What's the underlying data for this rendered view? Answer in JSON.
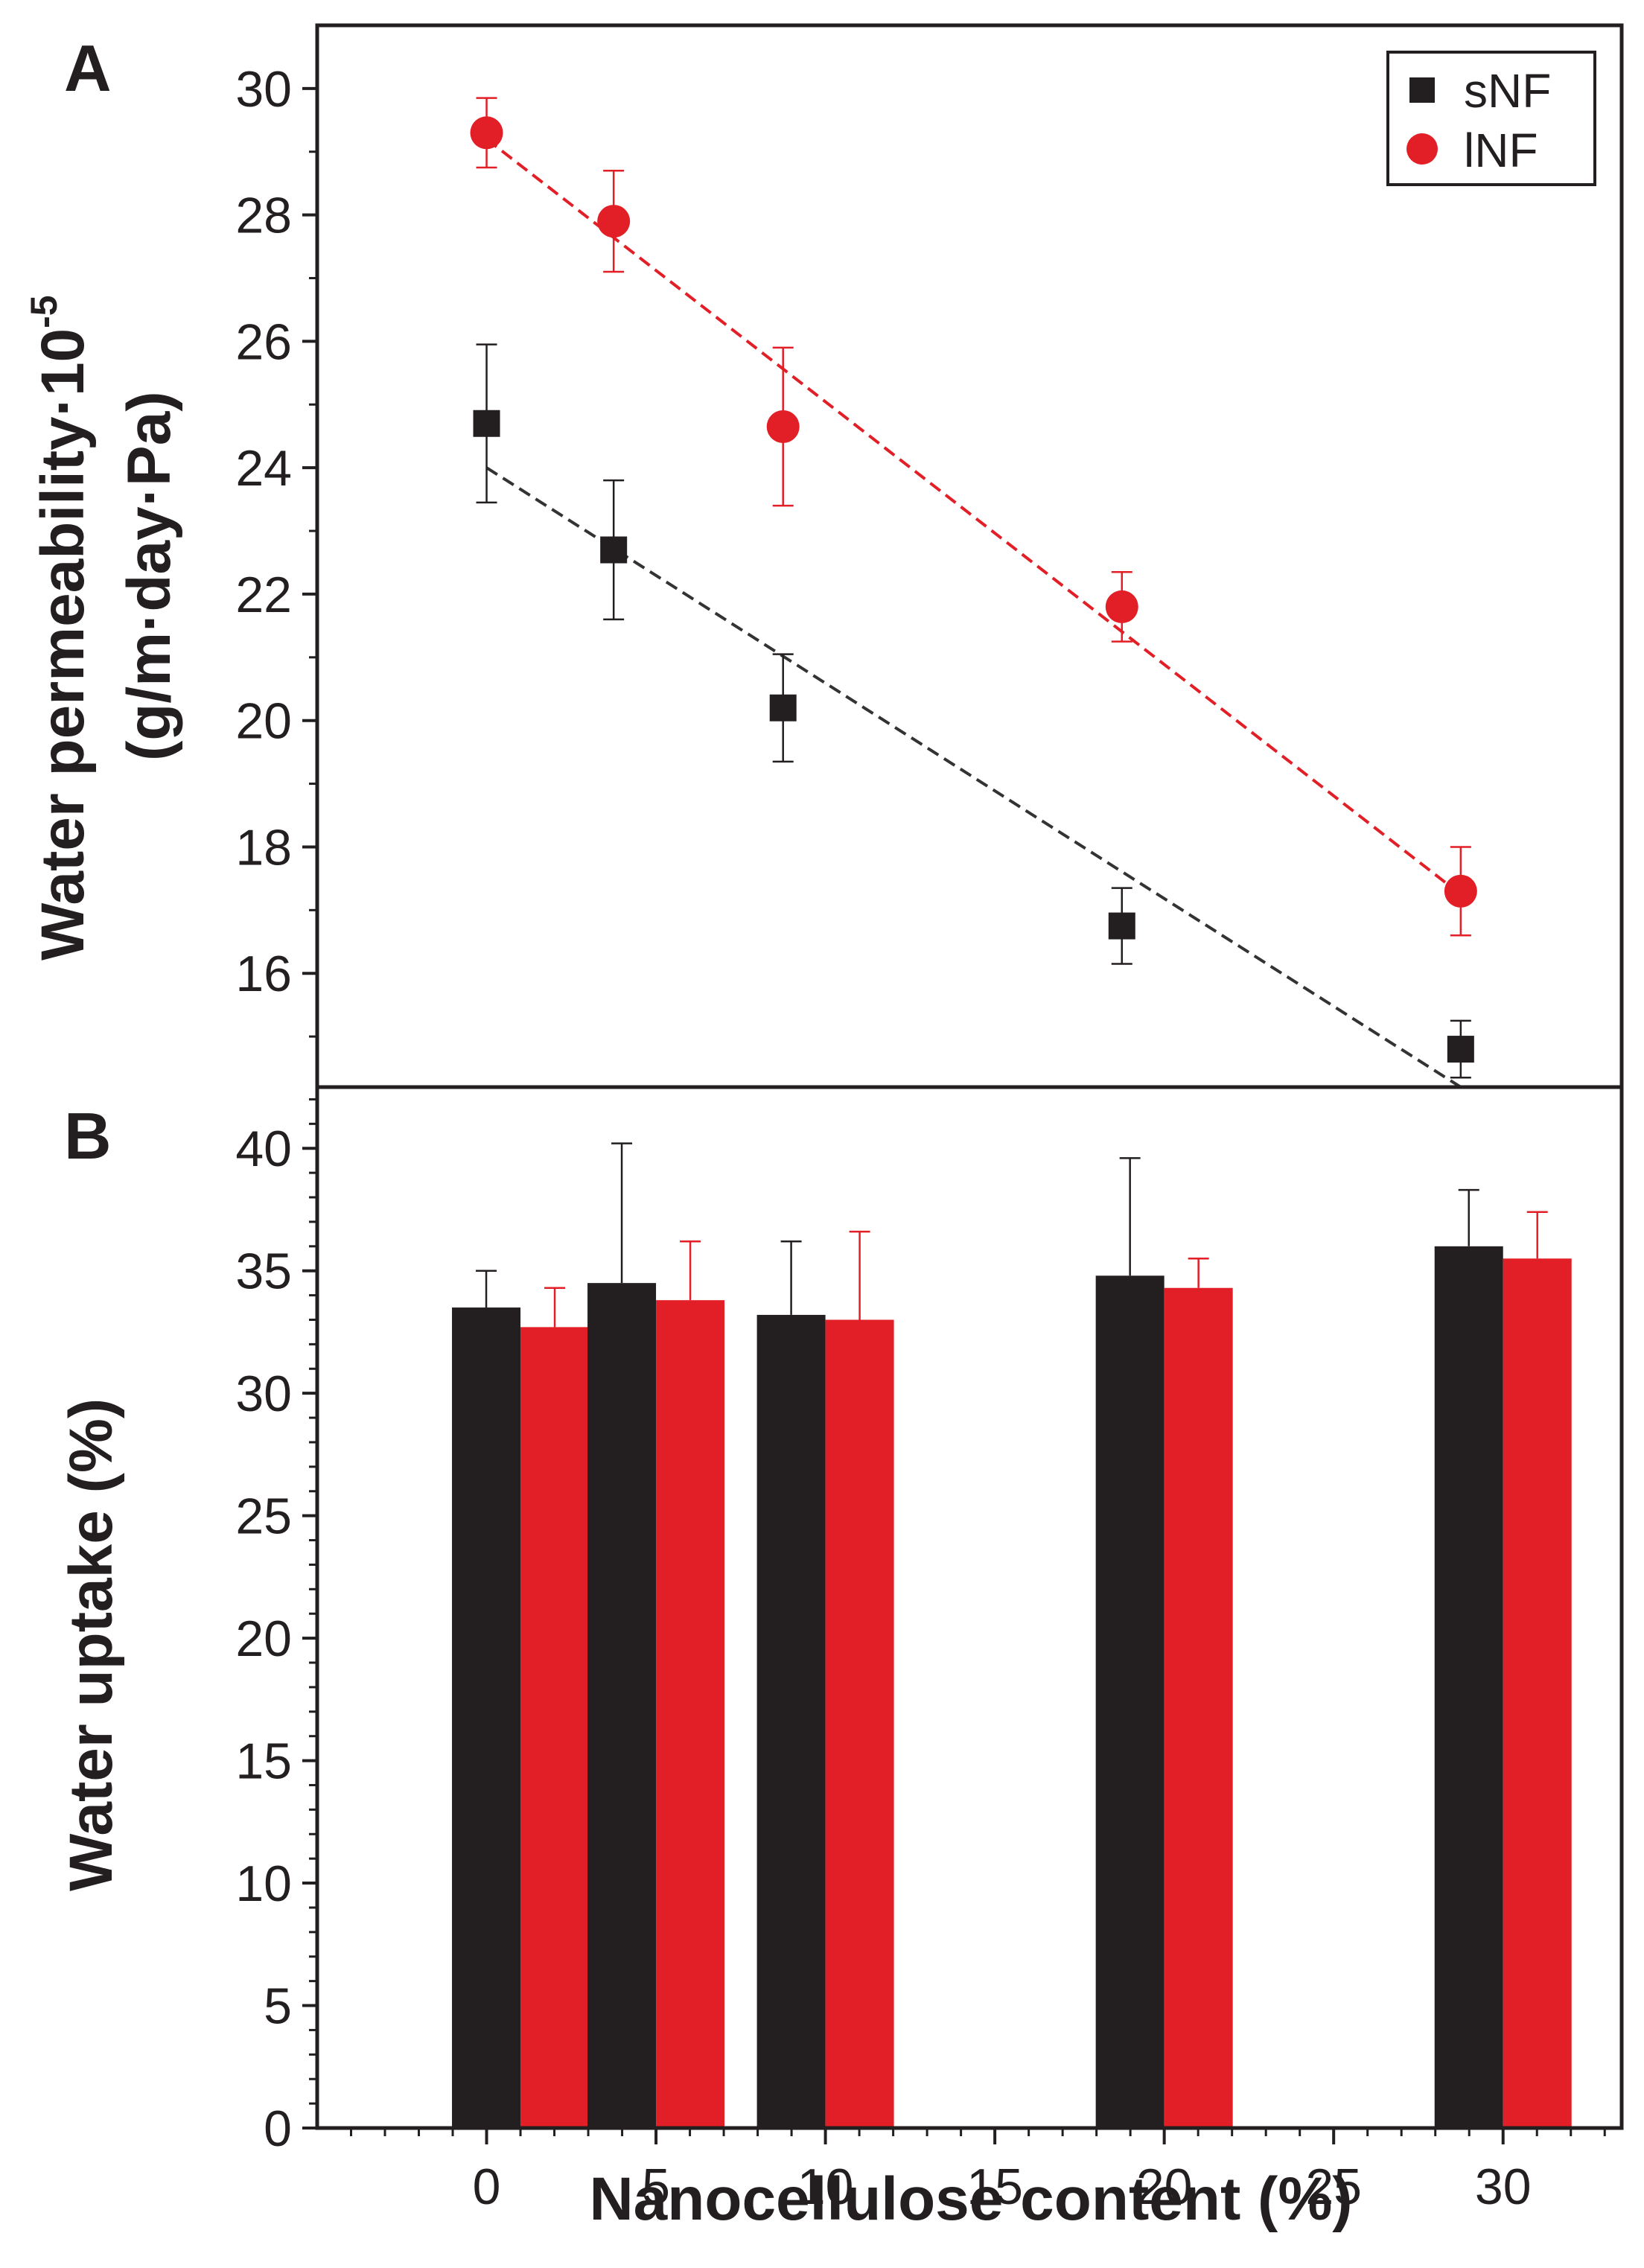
{
  "chart_data": [
    {
      "panel_label": "A",
      "type": "scatter",
      "ylabel_line1": "Water permeability·10",
      "ylabel_exponent": "-5",
      "ylabel_line2": "(g/m·day·Pa)",
      "ylim": [
        14.2,
        31.0
      ],
      "yticks": [
        16,
        18,
        20,
        22,
        24,
        26,
        28,
        30
      ],
      "ytick_labels": [
        "16",
        "18",
        "20",
        "22",
        "24",
        "26",
        "28",
        "30"
      ],
      "legend": {
        "position": "top-right",
        "entries": [
          "sNF",
          "lNF"
        ]
      },
      "series": [
        {
          "name": "sNF",
          "marker": "square",
          "color": "#231f20",
          "x": [
            0,
            3.75,
            8.75,
            18.75,
            28.75
          ],
          "y": [
            24.7,
            22.7,
            20.2,
            16.75,
            14.8
          ],
          "err_up": [
            1.25,
            1.1,
            0.85,
            0.6,
            0.45
          ],
          "err_down": [
            1.25,
            1.1,
            0.85,
            0.6,
            0.45
          ],
          "fit": {
            "x": [
              0,
              28.75
            ],
            "y": [
              24.0,
              14.2
            ]
          }
        },
        {
          "name": "lNF",
          "marker": "circle",
          "color": "#e21f26",
          "x": [
            0,
            3.75,
            8.75,
            18.75,
            28.75
          ],
          "y": [
            29.3,
            27.9,
            24.65,
            21.8,
            17.3
          ],
          "err_up": [
            0.55,
            0.8,
            1.25,
            0.55,
            0.7
          ],
          "err_down": [
            0.55,
            0.8,
            1.25,
            0.55,
            0.7
          ],
          "fit": {
            "x": [
              0,
              28.75
            ],
            "y": [
              29.2,
              17.25
            ]
          }
        }
      ]
    },
    {
      "panel_label": "B",
      "type": "bar",
      "ylabel": "Water uptake (%)",
      "xlabel": "Nanocellulose content (%)",
      "ylim": [
        0,
        42.5
      ],
      "yticks": [
        0,
        5,
        10,
        15,
        20,
        25,
        30,
        35,
        40
      ],
      "ytick_labels": [
        "0",
        "5",
        "10",
        "15",
        "20",
        "25",
        "30",
        "35",
        "40"
      ],
      "xlim": [
        -5,
        33.5
      ],
      "xticks": [
        0,
        5,
        10,
        15,
        20,
        25,
        30
      ],
      "xtick_labels": [
        "0",
        "5",
        "10",
        "15",
        "20",
        "25",
        "30"
      ],
      "categories": [
        0,
        5,
        10,
        20,
        30
      ],
      "bar_centers": [
        1.0,
        5.0,
        10.0,
        20.0,
        30.0
      ],
      "series": [
        {
          "name": "sNF",
          "color": "#231f20",
          "values": [
            33.5,
            34.5,
            33.2,
            34.8,
            36.0
          ],
          "err_up": [
            1.5,
            5.7,
            3.0,
            4.8,
            2.3
          ]
        },
        {
          "name": "lNF",
          "color": "#e21f26",
          "values": [
            32.7,
            33.8,
            33.0,
            34.3,
            35.5
          ],
          "err_up": [
            1.6,
            2.4,
            3.6,
            1.2,
            1.9
          ]
        }
      ]
    }
  ]
}
